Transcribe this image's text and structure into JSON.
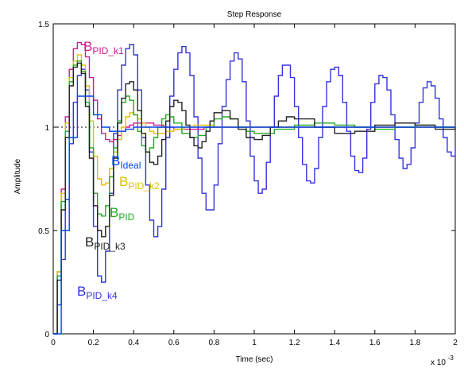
{
  "chart_data": {
    "type": "line",
    "title": "Step Response",
    "xlabel": "Time (sec)",
    "ylabel": "Amplitude",
    "x_scale_label": "x 10",
    "x_scale_exponent": "-3",
    "xlim": [
      0,
      2
    ],
    "ylim": [
      0,
      1.5
    ],
    "xticks": [
      "0",
      "0.2",
      "0.4",
      "0.6",
      "0.8",
      "1",
      "1.2",
      "1.4",
      "1.6",
      "1.8",
      "2"
    ],
    "xtick_values": [
      0,
      0.2,
      0.4,
      0.6,
      0.8,
      1.0,
      1.2,
      1.4,
      1.6,
      1.8,
      2.0
    ],
    "yticks": [
      "0",
      "0.5",
      "1",
      "1.5"
    ],
    "ytick_values": [
      0,
      0.5,
      1.0,
      1.5
    ],
    "reference_line": 1.0,
    "grid": false,
    "series": [
      {
        "name": "BPID_k4",
        "label_main": "B",
        "label_sub": "PID_k4",
        "color": "#3333dd",
        "x": [
          0,
          0.02,
          0.04,
          0.06,
          0.08,
          0.1,
          0.12,
          0.14,
          0.16,
          0.18,
          0.2,
          0.22,
          0.24,
          0.26,
          0.28,
          0.3,
          0.32,
          0.34,
          0.36,
          0.38,
          0.4,
          0.42,
          0.44,
          0.46,
          0.48,
          0.5,
          0.52,
          0.54,
          0.56,
          0.58,
          0.6,
          0.62,
          0.64,
          0.66,
          0.68,
          0.7,
          0.72,
          0.74,
          0.76,
          0.78,
          0.8,
          0.82,
          0.84,
          0.86,
          0.88,
          0.9,
          0.92,
          0.94,
          0.96,
          0.98,
          1.0,
          1.02,
          1.04,
          1.06,
          1.08,
          1.1,
          1.12,
          1.14,
          1.16,
          1.18,
          1.2,
          1.22,
          1.24,
          1.26,
          1.28,
          1.3,
          1.32,
          1.34,
          1.36,
          1.38,
          1.4,
          1.42,
          1.44,
          1.46,
          1.48,
          1.5,
          1.52,
          1.54,
          1.56,
          1.58,
          1.6,
          1.62,
          1.64,
          1.66,
          1.68,
          1.7,
          1.72,
          1.74,
          1.76,
          1.78,
          1.8,
          1.82,
          1.84,
          1.86,
          1.88,
          1.9,
          1.92,
          1.94,
          1.96,
          1.98,
          2.0
        ],
        "y": [
          0.0,
          0.14,
          0.36,
          0.65,
          0.92,
          1.12,
          1.25,
          1.28,
          1.18,
          0.88,
          0.52,
          0.28,
          0.25,
          0.4,
          0.68,
          0.97,
          1.18,
          1.3,
          1.38,
          1.4,
          1.35,
          1.18,
          0.95,
          0.72,
          0.55,
          0.47,
          0.52,
          0.7,
          0.95,
          1.15,
          1.28,
          1.36,
          1.39,
          1.36,
          1.25,
          1.05,
          0.85,
          0.68,
          0.6,
          0.6,
          0.72,
          0.92,
          1.1,
          1.23,
          1.32,
          1.36,
          1.33,
          1.22,
          1.03,
          0.86,
          0.74,
          0.68,
          0.7,
          0.83,
          1.0,
          1.15,
          1.25,
          1.3,
          1.3,
          1.24,
          1.1,
          0.95,
          0.82,
          0.74,
          0.73,
          0.8,
          0.95,
          1.1,
          1.22,
          1.28,
          1.29,
          1.25,
          1.12,
          0.98,
          0.86,
          0.79,
          0.78,
          0.85,
          0.99,
          1.12,
          1.21,
          1.25,
          1.24,
          1.18,
          1.06,
          0.94,
          0.85,
          0.8,
          0.82,
          0.9,
          1.02,
          1.12,
          1.19,
          1.22,
          1.2,
          1.14,
          1.04,
          0.95,
          0.88,
          0.86,
          0.9
        ]
      },
      {
        "name": "BPID_k1",
        "label_main": "B",
        "label_sub": "PID_k1",
        "color": "#d01890",
        "x": [
          0,
          0.02,
          0.04,
          0.06,
          0.08,
          0.1,
          0.12,
          0.14,
          0.16,
          0.18,
          0.2,
          0.22,
          0.24,
          0.26,
          0.28,
          0.3,
          0.32,
          0.34,
          0.36,
          0.38,
          0.4,
          0.45,
          0.5,
          0.55,
          0.6,
          0.65,
          0.7,
          0.75,
          0.8,
          0.9,
          1.0,
          1.2,
          1.4,
          1.6,
          1.8,
          2.0
        ],
        "y": [
          0.0,
          0.3,
          0.7,
          1.05,
          1.28,
          1.38,
          1.41,
          1.4,
          1.34,
          1.24,
          1.13,
          1.04,
          0.97,
          0.94,
          0.93,
          0.94,
          0.96,
          0.98,
          1.0,
          1.01,
          1.02,
          1.02,
          1.01,
          1.0,
          0.99,
          0.99,
          0.99,
          1.0,
          1.0,
          1.0,
          1.0,
          1.0,
          1.0,
          1.0,
          1.0,
          1.0
        ]
      },
      {
        "name": "BPID_k2",
        "label_main": "B",
        "label_sub": "PID_k2",
        "color": "#e0c000",
        "x": [
          0,
          0.02,
          0.04,
          0.06,
          0.08,
          0.1,
          0.12,
          0.14,
          0.16,
          0.18,
          0.2,
          0.22,
          0.24,
          0.26,
          0.28,
          0.3,
          0.32,
          0.34,
          0.36,
          0.38,
          0.4,
          0.42,
          0.44,
          0.46,
          0.48,
          0.5,
          0.52,
          0.56,
          0.6,
          0.65,
          0.7,
          0.75,
          0.8,
          0.9,
          1.0,
          1.2,
          1.4,
          1.6,
          1.8,
          2.0
        ],
        "y": [
          0.0,
          0.3,
          0.68,
          1.02,
          1.24,
          1.32,
          1.35,
          1.3,
          1.2,
          1.03,
          0.86,
          0.75,
          0.72,
          0.73,
          0.8,
          0.88,
          0.94,
          1.0,
          1.05,
          1.07,
          1.06,
          1.04,
          1.02,
          1.0,
          0.98,
          0.97,
          0.97,
          0.98,
          0.99,
          1.0,
          1.01,
          1.01,
          1.0,
          1.0,
          1.0,
          1.0,
          1.0,
          1.0,
          1.0,
          1.0
        ]
      },
      {
        "name": "BPID",
        "label_main": "B",
        "label_sub": "PID",
        "color": "#22aa22",
        "x": [
          0,
          0.02,
          0.04,
          0.06,
          0.08,
          0.1,
          0.12,
          0.14,
          0.16,
          0.18,
          0.2,
          0.22,
          0.24,
          0.26,
          0.28,
          0.3,
          0.32,
          0.34,
          0.36,
          0.38,
          0.4,
          0.42,
          0.44,
          0.46,
          0.48,
          0.5,
          0.52,
          0.54,
          0.56,
          0.58,
          0.6,
          0.64,
          0.68,
          0.72,
          0.76,
          0.8,
          0.84,
          0.88,
          0.92,
          0.96,
          1.0,
          1.1,
          1.2,
          1.3,
          1.4,
          1.5,
          1.6,
          1.7,
          1.8,
          1.9,
          2.0
        ],
        "y": [
          0.0,
          0.28,
          0.64,
          0.98,
          1.22,
          1.3,
          1.32,
          1.27,
          1.12,
          0.9,
          0.68,
          0.58,
          0.57,
          0.62,
          0.76,
          0.9,
          1.03,
          1.12,
          1.15,
          1.13,
          1.06,
          0.98,
          0.91,
          0.88,
          0.9,
          0.95,
          1.0,
          1.04,
          1.06,
          1.05,
          1.02,
          0.97,
          0.95,
          0.96,
          1.0,
          1.04,
          1.05,
          1.04,
          1.0,
          0.98,
          0.97,
          0.99,
          1.01,
          1.02,
          1.01,
          1.0,
          0.99,
          1.0,
          1.01,
          1.0,
          1.0
        ]
      },
      {
        "name": "BPID_k3",
        "label_main": "B",
        "label_sub": "PID_k3",
        "color": "#222222",
        "x": [
          0,
          0.02,
          0.04,
          0.06,
          0.08,
          0.1,
          0.12,
          0.14,
          0.16,
          0.18,
          0.2,
          0.22,
          0.24,
          0.26,
          0.28,
          0.3,
          0.32,
          0.34,
          0.36,
          0.38,
          0.4,
          0.42,
          0.44,
          0.46,
          0.48,
          0.5,
          0.52,
          0.54,
          0.56,
          0.58,
          0.6,
          0.62,
          0.64,
          0.66,
          0.68,
          0.7,
          0.72,
          0.74,
          0.76,
          0.78,
          0.8,
          0.84,
          0.88,
          0.92,
          0.96,
          1.0,
          1.04,
          1.08,
          1.12,
          1.16,
          1.2,
          1.3,
          1.4,
          1.5,
          1.6,
          1.7,
          1.8,
          1.9,
          2.0
        ],
        "y": [
          0.0,
          0.26,
          0.6,
          0.95,
          1.2,
          1.29,
          1.31,
          1.26,
          1.1,
          0.85,
          0.62,
          0.5,
          0.47,
          0.52,
          0.67,
          0.85,
          1.02,
          1.14,
          1.21,
          1.22,
          1.18,
          1.08,
          0.97,
          0.88,
          0.83,
          0.82,
          0.86,
          0.94,
          1.03,
          1.1,
          1.13,
          1.12,
          1.08,
          1.01,
          0.95,
          0.91,
          0.9,
          0.93,
          0.98,
          1.03,
          1.07,
          1.08,
          1.04,
          0.99,
          0.95,
          0.94,
          0.96,
          1.0,
          1.03,
          1.05,
          1.04,
          1.0,
          0.97,
          0.98,
          1.01,
          1.02,
          1.01,
          0.99,
          1.0
        ]
      },
      {
        "name": "BIdeal",
        "label_main": "B",
        "label_sub": "Ideal",
        "color": "#0044ee",
        "x": [
          0,
          0.04,
          0.08,
          0.12,
          0.16,
          0.2,
          0.24,
          0.28,
          0.32,
          0.36,
          0.4,
          0.5,
          0.6,
          0.8,
          1.0,
          1.5,
          2.0
        ],
        "y": [
          0.0,
          0.5,
          0.95,
          1.15,
          1.15,
          1.06,
          1.0,
          0.98,
          0.98,
          0.99,
          1.0,
          1.0,
          1.0,
          1.0,
          1.0,
          1.0,
          1.0
        ]
      }
    ]
  }
}
